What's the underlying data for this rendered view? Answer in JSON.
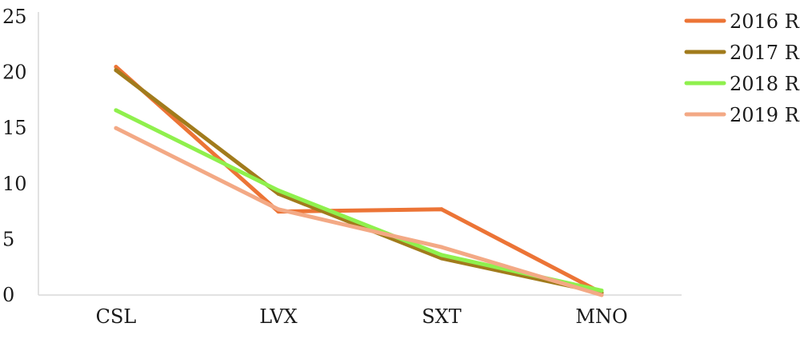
{
  "chart_data": {
    "type": "line",
    "categories": [
      "CSL",
      "LVX",
      "SXT",
      "MNO"
    ],
    "ylim": [
      0,
      25
    ],
    "yticks": [
      0,
      5,
      10,
      15,
      20,
      25
    ],
    "grid": false,
    "legend_position": "top-right",
    "series": [
      {
        "name": "2016 R",
        "color": "#ec7436",
        "values": [
          20.5,
          7.5,
          7.7,
          0.2
        ]
      },
      {
        "name": "2017 R",
        "color": "#a17b1c",
        "values": [
          20.2,
          9.1,
          3.3,
          0.2
        ]
      },
      {
        "name": "2018 R",
        "color": "#8ff04d",
        "values": [
          16.6,
          9.4,
          3.6,
          0.4
        ]
      },
      {
        "name": "2019 R",
        "color": "#f3a985",
        "values": [
          15.0,
          7.7,
          4.3,
          0.0
        ]
      }
    ]
  }
}
